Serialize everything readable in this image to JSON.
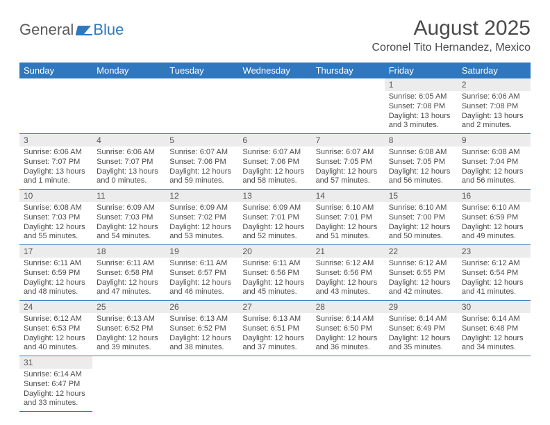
{
  "logo": {
    "part1": "General",
    "part2": "Blue"
  },
  "title": "August 2025",
  "location": "Coronel Tito Hernandez, Mexico",
  "colors": {
    "header_bg": "#2f78bf",
    "header_text": "#ffffff",
    "daynum_bg": "#ececec",
    "border": "#2f78bf",
    "text": "#4a4a4a"
  },
  "weekdays": [
    "Sunday",
    "Monday",
    "Tuesday",
    "Wednesday",
    "Thursday",
    "Friday",
    "Saturday"
  ],
  "firstDayOffset": 5,
  "daysInMonth": 31,
  "days": {
    "1": {
      "sunrise": "6:05 AM",
      "sunset": "7:08 PM",
      "daylight": "13 hours and 3 minutes."
    },
    "2": {
      "sunrise": "6:06 AM",
      "sunset": "7:08 PM",
      "daylight": "13 hours and 2 minutes."
    },
    "3": {
      "sunrise": "6:06 AM",
      "sunset": "7:07 PM",
      "daylight": "13 hours and 1 minute."
    },
    "4": {
      "sunrise": "6:06 AM",
      "sunset": "7:07 PM",
      "daylight": "13 hours and 0 minutes."
    },
    "5": {
      "sunrise": "6:07 AM",
      "sunset": "7:06 PM",
      "daylight": "12 hours and 59 minutes."
    },
    "6": {
      "sunrise": "6:07 AM",
      "sunset": "7:06 PM",
      "daylight": "12 hours and 58 minutes."
    },
    "7": {
      "sunrise": "6:07 AM",
      "sunset": "7:05 PM",
      "daylight": "12 hours and 57 minutes."
    },
    "8": {
      "sunrise": "6:08 AM",
      "sunset": "7:05 PM",
      "daylight": "12 hours and 56 minutes."
    },
    "9": {
      "sunrise": "6:08 AM",
      "sunset": "7:04 PM",
      "daylight": "12 hours and 56 minutes."
    },
    "10": {
      "sunrise": "6:08 AM",
      "sunset": "7:03 PM",
      "daylight": "12 hours and 55 minutes."
    },
    "11": {
      "sunrise": "6:09 AM",
      "sunset": "7:03 PM",
      "daylight": "12 hours and 54 minutes."
    },
    "12": {
      "sunrise": "6:09 AM",
      "sunset": "7:02 PM",
      "daylight": "12 hours and 53 minutes."
    },
    "13": {
      "sunrise": "6:09 AM",
      "sunset": "7:01 PM",
      "daylight": "12 hours and 52 minutes."
    },
    "14": {
      "sunrise": "6:10 AM",
      "sunset": "7:01 PM",
      "daylight": "12 hours and 51 minutes."
    },
    "15": {
      "sunrise": "6:10 AM",
      "sunset": "7:00 PM",
      "daylight": "12 hours and 50 minutes."
    },
    "16": {
      "sunrise": "6:10 AM",
      "sunset": "6:59 PM",
      "daylight": "12 hours and 49 minutes."
    },
    "17": {
      "sunrise": "6:11 AM",
      "sunset": "6:59 PM",
      "daylight": "12 hours and 48 minutes."
    },
    "18": {
      "sunrise": "6:11 AM",
      "sunset": "6:58 PM",
      "daylight": "12 hours and 47 minutes."
    },
    "19": {
      "sunrise": "6:11 AM",
      "sunset": "6:57 PM",
      "daylight": "12 hours and 46 minutes."
    },
    "20": {
      "sunrise": "6:11 AM",
      "sunset": "6:56 PM",
      "daylight": "12 hours and 45 minutes."
    },
    "21": {
      "sunrise": "6:12 AM",
      "sunset": "6:56 PM",
      "daylight": "12 hours and 43 minutes."
    },
    "22": {
      "sunrise": "6:12 AM",
      "sunset": "6:55 PM",
      "daylight": "12 hours and 42 minutes."
    },
    "23": {
      "sunrise": "6:12 AM",
      "sunset": "6:54 PM",
      "daylight": "12 hours and 41 minutes."
    },
    "24": {
      "sunrise": "6:12 AM",
      "sunset": "6:53 PM",
      "daylight": "12 hours and 40 minutes."
    },
    "25": {
      "sunrise": "6:13 AM",
      "sunset": "6:52 PM",
      "daylight": "12 hours and 39 minutes."
    },
    "26": {
      "sunrise": "6:13 AM",
      "sunset": "6:52 PM",
      "daylight": "12 hours and 38 minutes."
    },
    "27": {
      "sunrise": "6:13 AM",
      "sunset": "6:51 PM",
      "daylight": "12 hours and 37 minutes."
    },
    "28": {
      "sunrise": "6:14 AM",
      "sunset": "6:50 PM",
      "daylight": "12 hours and 36 minutes."
    },
    "29": {
      "sunrise": "6:14 AM",
      "sunset": "6:49 PM",
      "daylight": "12 hours and 35 minutes."
    },
    "30": {
      "sunrise": "6:14 AM",
      "sunset": "6:48 PM",
      "daylight": "12 hours and 34 minutes."
    },
    "31": {
      "sunrise": "6:14 AM",
      "sunset": "6:47 PM",
      "daylight": "12 hours and 33 minutes."
    }
  },
  "labels": {
    "sunrise": "Sunrise: ",
    "sunset": "Sunset: ",
    "daylight": "Daylight: "
  }
}
